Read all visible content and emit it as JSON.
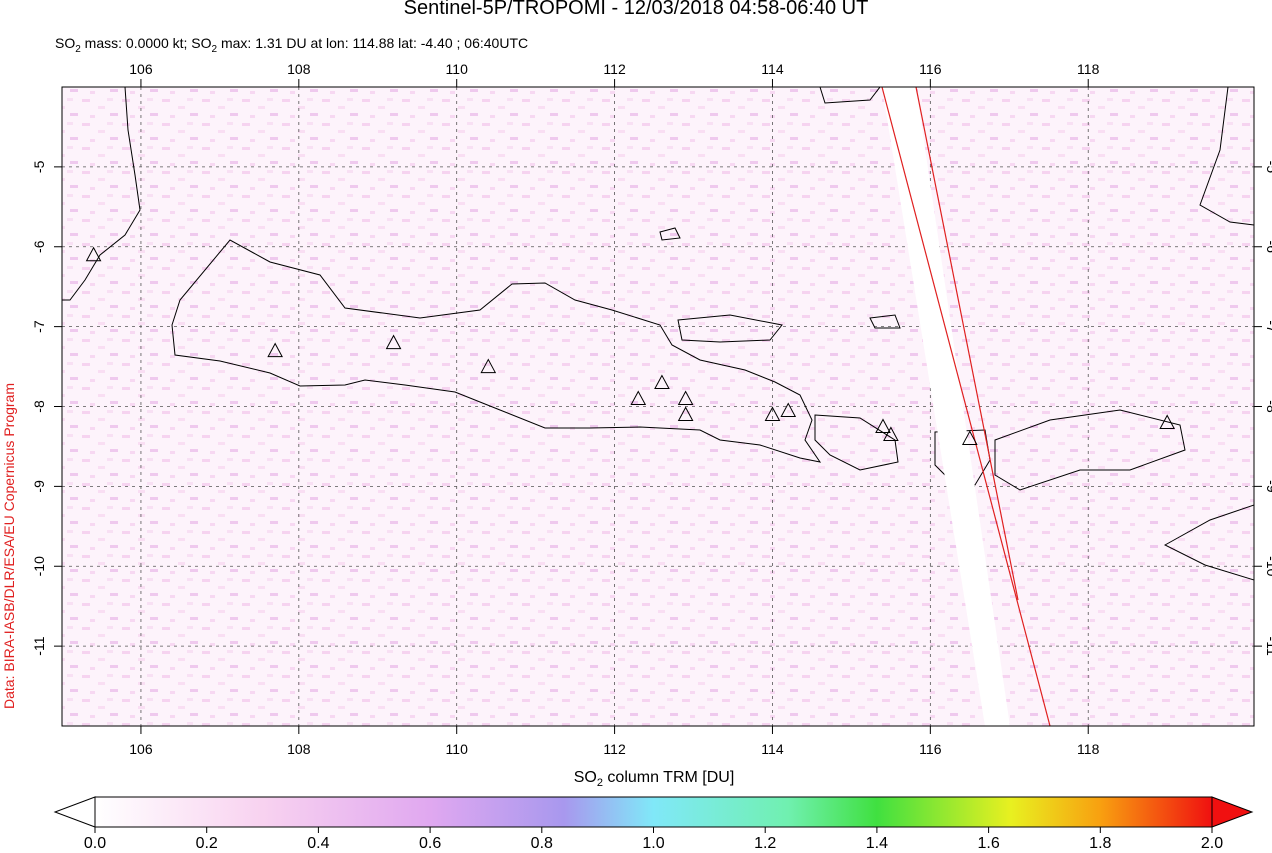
{
  "chart_data": {
    "type": "map",
    "title": "Sentinel-5P/TROPOMI - 12/03/2018 04:58-06:40 UT",
    "subtitle": [
      "SO",
      "2",
      " mass: 0.0000 kt; SO",
      "2",
      " max: 1.31 DU at lon: 114.88 lat: -4.40 ; 06:40UTC"
    ],
    "side_label": "Data: BIRA-IASB/DLR/ESA/EU Copernicus Program",
    "xlim": [
      105,
      120.1
    ],
    "ylim": [
      -12,
      -4
    ],
    "xticks": [
      106,
      108,
      110,
      112,
      114,
      116,
      118
    ],
    "yticks": [
      -5,
      -6,
      -7,
      -8,
      -9,
      -10,
      -11
    ],
    "grid": true,
    "volcanoes": {
      "x": [
        105.4,
        107.7,
        109.2,
        110.4,
        112.6,
        112.3,
        112.9,
        112.9,
        114.0,
        114.2,
        115.4,
        115.5,
        116.5,
        119.0
      ],
      "y": [
        -6.1,
        -7.3,
        -7.2,
        -7.5,
        -7.7,
        -7.9,
        -7.9,
        -8.1,
        -8.1,
        -8.05,
        -8.25,
        -8.35,
        -8.4,
        -8.2
      ]
    },
    "colorbar": {
      "label": [
        "SO",
        "2",
        " column TRM [DU]"
      ],
      "lim": [
        0,
        2
      ],
      "ticks": [
        {
          "value": 0,
          "label": "0.0"
        },
        {
          "value": 0.2,
          "label": "0.2"
        },
        {
          "value": 0.4,
          "label": "0.4"
        },
        {
          "value": 0.6,
          "label": "0.6"
        },
        {
          "value": 0.8,
          "label": "0.8"
        },
        {
          "value": 1,
          "label": "1.0"
        },
        {
          "value": 1.2,
          "label": "1.2"
        },
        {
          "value": 1.4,
          "label": "1.4"
        },
        {
          "value": 1.6,
          "label": "1.6"
        },
        {
          "value": 1.8,
          "label": "1.8"
        },
        {
          "value": 2,
          "label": "2.0"
        }
      ]
    }
  }
}
